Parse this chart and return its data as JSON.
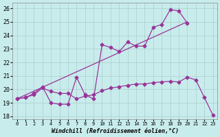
{
  "bg_color": "#c8ecec",
  "grid_color": "#aacccc",
  "line_color": "#993399",
  "xlim": [
    -0.5,
    23.5
  ],
  "ylim": [
    17.8,
    26.4
  ],
  "yticks": [
    18,
    19,
    20,
    21,
    22,
    23,
    24,
    25,
    26
  ],
  "xticks": [
    0,
    1,
    2,
    3,
    4,
    5,
    6,
    7,
    8,
    9,
    10,
    11,
    12,
    13,
    14,
    15,
    16,
    17,
    18,
    19,
    20,
    21,
    22,
    23
  ],
  "xlabel": "Windchill (Refroidissement éolien,°C)",
  "line_straight": {
    "x": [
      0,
      20
    ],
    "y": [
      19.3,
      25.0
    ],
    "marker": false,
    "dashed": false
  },
  "line_jagged": {
    "x": [
      0,
      1,
      2,
      3,
      4,
      5,
      6,
      7,
      8,
      9,
      10,
      11,
      12,
      13,
      14,
      15,
      16,
      17,
      18,
      19,
      20
    ],
    "y": [
      19.3,
      19.4,
      19.7,
      20.2,
      19.0,
      18.9,
      18.9,
      20.9,
      19.6,
      19.3,
      23.3,
      23.1,
      22.8,
      23.5,
      23.2,
      23.2,
      24.6,
      24.8,
      25.9,
      25.8,
      24.9
    ],
    "marker": true,
    "dashed": false
  },
  "line_declining": {
    "x": [
      0,
      1,
      2,
      3,
      4,
      5,
      6,
      7,
      8,
      9,
      10,
      11,
      12,
      13,
      14,
      15,
      16,
      17,
      18,
      19,
      20,
      21,
      22,
      23
    ],
    "y": [
      19.3,
      19.4,
      19.6,
      20.1,
      19.85,
      19.7,
      19.7,
      19.3,
      19.5,
      19.6,
      19.9,
      20.1,
      20.2,
      20.3,
      20.4,
      20.4,
      20.5,
      20.55,
      20.6,
      20.55,
      20.9,
      20.7,
      19.4,
      18.1
    ],
    "marker": true,
    "dashed": false
  }
}
